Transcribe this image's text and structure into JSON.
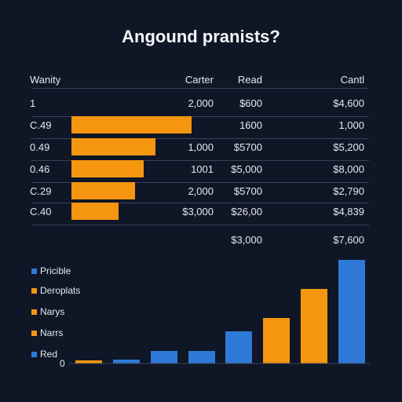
{
  "colors": {
    "background": "#0f1626",
    "orange": "#f4960f",
    "blue": "#2f7ad8",
    "rule": "#3a4256"
  },
  "chart_data": [
    {
      "type": "table",
      "title": "Angound pranists?",
      "columns": [
        "Wanity",
        "Carter",
        "Read",
        "Cantl"
      ],
      "rows": [
        {
          "label": "1",
          "bar": null,
          "carter": "2,000",
          "read": "$600",
          "canti": "$4,600"
        },
        {
          "label": "C.49",
          "bar": 1.0,
          "carter": "",
          "read": "1600",
          "canti": "1,000"
        },
        {
          "label": "0.49",
          "bar": 0.7,
          "carter": "1,000",
          "read": "$5700",
          "canti": "$5,200"
        },
        {
          "label": "0.46",
          "bar": 0.6,
          "carter": "1001",
          "read": "$5,000",
          "canti": "$8,000"
        },
        {
          "label": "C.29",
          "bar": 0.53,
          "carter": "2,000",
          "read": "$5700",
          "canti": "$2,790"
        },
        {
          "label": "C.40",
          "bar": 0.39,
          "carter": "$3,000",
          "read": "$26,00",
          "canti": "$4,839"
        },
        {
          "label": "",
          "bar": null,
          "carter": "",
          "read": "$3,000",
          "canti": "$7,600"
        }
      ]
    },
    {
      "type": "bar",
      "legend": [
        {
          "label": "Pricible",
          "color": "#2f7ad8"
        },
        {
          "label": "Deroplats",
          "color": "#f4960f"
        },
        {
          "label": "Narys",
          "color": "#f4960f"
        },
        {
          "label": "Narrs",
          "color": "#f4960f"
        },
        {
          "label": "Red",
          "color": "#2f7ad8"
        }
      ],
      "legend_position": "left",
      "y_tick": "0",
      "values": [
        0.03,
        0.04,
        0.12,
        0.12,
        0.31,
        0.44,
        0.72,
        1.0
      ],
      "colors": [
        "#f4960f",
        "#2f7ad8",
        "#2f7ad8",
        "#2f7ad8",
        "#2f7ad8",
        "#f4960f",
        "#f4960f",
        "#2f7ad8"
      ]
    }
  ]
}
